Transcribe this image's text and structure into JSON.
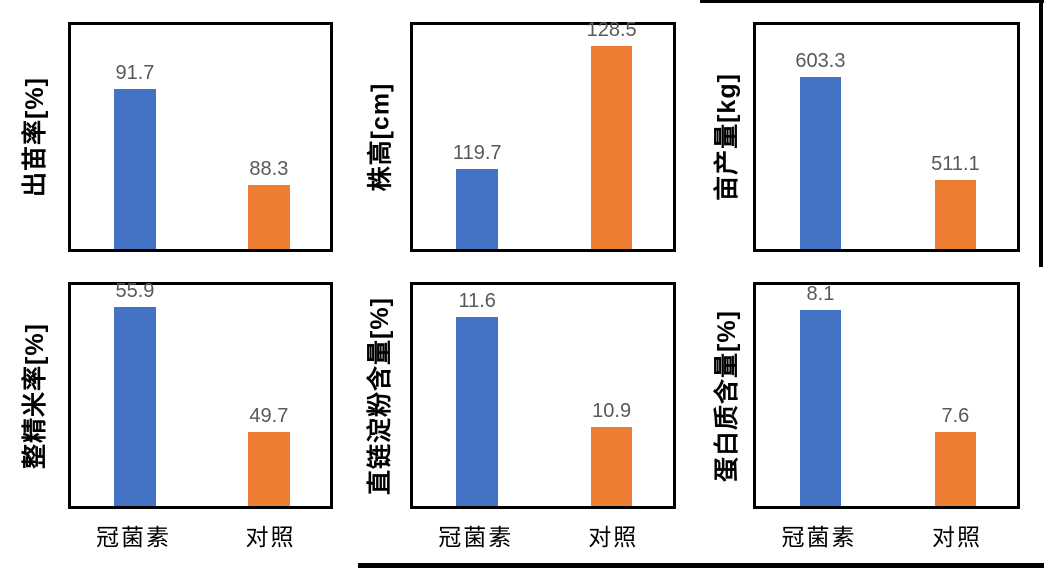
{
  "categories": [
    "冠菌素",
    "对照"
  ],
  "colors": {
    "series": [
      {
        "name": "冠菌素",
        "hex": "#4472C4"
      },
      {
        "name": "对照",
        "hex": "#ED7D31"
      }
    ],
    "value_label": "#595959",
    "axis_title": "#000000",
    "plot_border": "#000000",
    "divider_lines": "#000000"
  },
  "chart_data": [
    {
      "type": "bar",
      "ylabel": "出苗率[%]",
      "xlabel": "",
      "categories": [
        "冠菌素",
        "对照"
      ],
      "values": [
        91.7,
        88.3
      ],
      "value_labels": [
        "91.7",
        "88.3"
      ],
      "ylim": [
        86,
        94
      ],
      "grid": false,
      "legend": false,
      "show_x_labels": false
    },
    {
      "type": "bar",
      "ylabel": "株高[cm]",
      "xlabel": "",
      "categories": [
        "冠菌素",
        "对照"
      ],
      "values": [
        119.7,
        128.5
      ],
      "value_labels": [
        "119.7",
        "128.5"
      ],
      "ylim": [
        114,
        130
      ],
      "grid": false,
      "legend": false,
      "show_x_labels": false
    },
    {
      "type": "bar",
      "ylabel": "亩产量[kg]",
      "xlabel": "",
      "categories": [
        "冠菌素",
        "对照"
      ],
      "values": [
        603.3,
        511.1
      ],
      "value_labels": [
        "603.3",
        "511.1"
      ],
      "ylim": [
        450,
        650
      ],
      "grid": false,
      "legend": false,
      "show_x_labels": false
    },
    {
      "type": "bar",
      "ylabel": "整精米率[%]",
      "xlabel": "",
      "categories": [
        "冠菌素",
        "对照"
      ],
      "values": [
        55.9,
        49.7
      ],
      "value_labels": [
        "55.9",
        "49.7"
      ],
      "ylim": [
        46,
        57
      ],
      "grid": false,
      "legend": false,
      "show_x_labels": true
    },
    {
      "type": "bar",
      "ylabel": "直链淀粉含量[%]",
      "xlabel": "",
      "categories": [
        "冠菌素",
        "对照"
      ],
      "values": [
        11.6,
        10.9
      ],
      "value_labels": [
        "11.6",
        "10.9"
      ],
      "ylim": [
        10.4,
        11.8
      ],
      "grid": false,
      "legend": false,
      "show_x_labels": true
    },
    {
      "type": "bar",
      "ylabel": "蛋白质含量[%]",
      "xlabel": "",
      "categories": [
        "冠菌素",
        "对照"
      ],
      "values": [
        8.1,
        7.6
      ],
      "value_labels": [
        "8.1",
        "7.6"
      ],
      "ylim": [
        7.3,
        8.2
      ],
      "grid": false,
      "legend": false,
      "show_x_labels": true
    }
  ]
}
